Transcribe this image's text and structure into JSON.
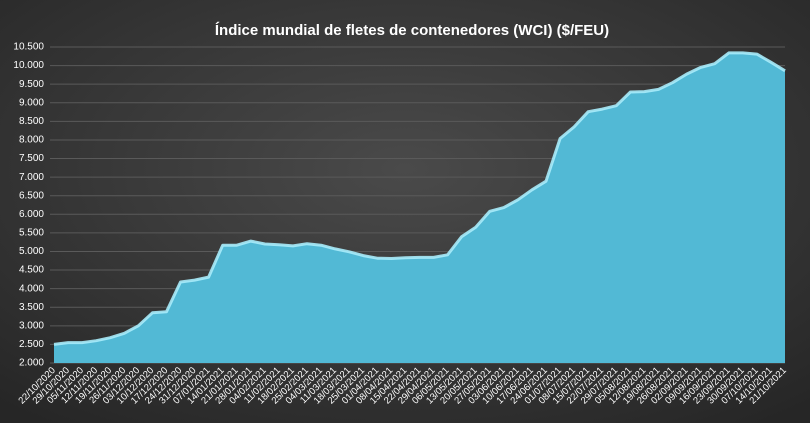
{
  "chart_data": {
    "type": "area",
    "title": "Índice mundial de fletes de contenedores (WCI) ($/FEU)",
    "categories": [
      "22/10/2020",
      "29/10/2020",
      "05/11/2020",
      "12/11/2020",
      "19/11/2020",
      "26/11/2020",
      "03/12/2020",
      "10/12/2020",
      "17/12/2020",
      "24/12/2020",
      "31/12/2020",
      "07/01/2021",
      "14/01/2021",
      "21/01/2021",
      "28/01/2021",
      "04/02/2021",
      "11/02/2021",
      "18/02/2021",
      "25/02/2021",
      "04/03/2021",
      "11/03/2021",
      "18/03/2021",
      "25/03/2021",
      "01/04/2021",
      "08/04/2021",
      "15/04/2021",
      "22/04/2021",
      "29/04/2021",
      "06/05/2021",
      "13/05/2021",
      "20/05/2021",
      "27/05/2021",
      "03/06/2021",
      "10/06/2021",
      "17/06/2021",
      "24/06/2021",
      "01/07/2021",
      "08/07/2021",
      "15/07/2021",
      "22/07/2021",
      "29/07/2021",
      "05/08/2021",
      "12/08/2021",
      "19/08/2021",
      "26/08/2021",
      "02/09/2021",
      "09/09/2021",
      "16/09/2021",
      "23/09/2021",
      "30/09/2021",
      "07/10/2021",
      "14/10/2021",
      "21/10/2021"
    ],
    "values": [
      2500,
      2550,
      2550,
      2600,
      2680,
      2800,
      3000,
      3350,
      3380,
      4180,
      4230,
      4310,
      5170,
      5170,
      5280,
      5200,
      5180,
      5150,
      5210,
      5170,
      5070,
      4990,
      4890,
      4820,
      4810,
      4830,
      4840,
      4840,
      4910,
      5400,
      5650,
      6080,
      6180,
      6390,
      6660,
      6890,
      8040,
      8350,
      8760,
      8830,
      8920,
      9290,
      9300,
      9360,
      9540,
      9770,
      9950,
      10050,
      10340,
      10340,
      10310,
      10090,
      9860
    ],
    "color": "#52b9d5",
    "ylim": [
      2000,
      10500
    ],
    "yticks": [
      {
        "value": 2000,
        "label": "2.000"
      },
      {
        "value": 2500,
        "label": "2.500"
      },
      {
        "value": 3000,
        "label": "3.000"
      },
      {
        "value": 3500,
        "label": "3.500"
      },
      {
        "value": 4000,
        "label": "4.000"
      },
      {
        "value": 4500,
        "label": "4.500"
      },
      {
        "value": 5000,
        "label": "5.000"
      },
      {
        "value": 5500,
        "label": "5.500"
      },
      {
        "value": 6000,
        "label": "6.000"
      },
      {
        "value": 6500,
        "label": "6.500"
      },
      {
        "value": 7000,
        "label": "7.000"
      },
      {
        "value": 7500,
        "label": "7.500"
      },
      {
        "value": 8000,
        "label": "8.000"
      },
      {
        "value": 8500,
        "label": "8.500"
      },
      {
        "value": 9000,
        "label": "9.000"
      },
      {
        "value": 9500,
        "label": "9.500"
      },
      {
        "value": 10000,
        "label": "10.000"
      },
      {
        "value": 10500,
        "label": "10.500"
      }
    ],
    "grid": true
  }
}
